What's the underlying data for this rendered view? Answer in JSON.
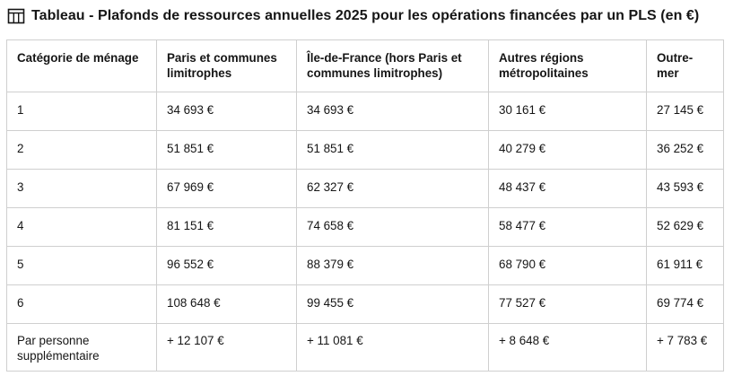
{
  "caption": {
    "icon": "table-icon",
    "title": "Tableau - Plafonds de ressources annuelles 2025 pour les opérations financées par un PLS (en €)"
  },
  "table": {
    "headers": [
      "Catégorie de ménage",
      "Paris et communes limitrophes",
      "Île-de-France (hors Paris et communes limitrophes)",
      "Autres régions métropolitaines",
      "Outre-mer"
    ],
    "rows": [
      [
        "1",
        "34 693 €",
        "34 693 €",
        "30 161 €",
        "27 145 €"
      ],
      [
        "2",
        "51 851 €",
        "51 851 €",
        "40 279 €",
        "36 252 €"
      ],
      [
        "3",
        "67 969 €",
        "62 327 €",
        "48 437 €",
        "43 593 €"
      ],
      [
        "4",
        "81 151 €",
        "74 658 €",
        "58 477 €",
        "52 629 €"
      ],
      [
        "5",
        "96 552 €",
        "88 379 €",
        "68 790 €",
        "61 911 €"
      ],
      [
        "6",
        "108 648 €",
        "99 455 €",
        "77 527 €",
        "69 774 €"
      ],
      [
        "Par personne supplémentaire",
        "+ 12 107 €",
        "+ 11 081 €",
        "+ 8 648 €",
        "+ 7 783 €"
      ]
    ]
  }
}
